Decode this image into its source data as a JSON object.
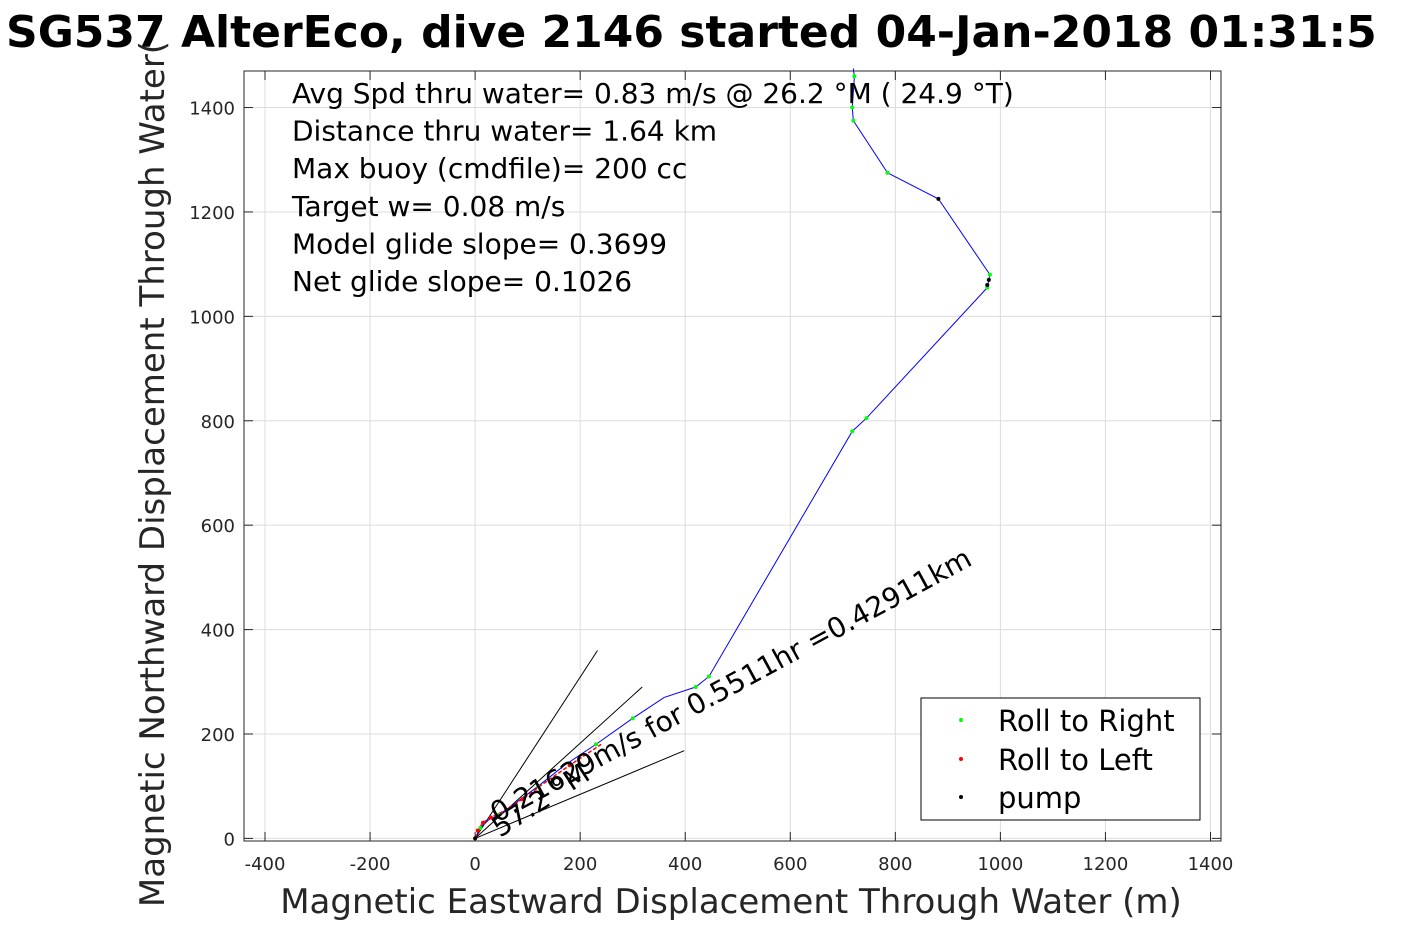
{
  "chart_data": {
    "type": "line",
    "title": "SG537 AlterEco, dive 2146 started 04-Jan-2018 01:31:5",
    "xlabel": "Magnetic Eastward Displacement Through Water (m)",
    "ylabel": "Magnetic Northward Displacement Through Water(",
    "xlim": [
      -440,
      1420
    ],
    "ylim": [
      -5,
      1470
    ],
    "xticks": [
      -400,
      -200,
      0,
      200,
      400,
      600,
      800,
      1000,
      1200,
      1400
    ],
    "yticks": [
      0,
      200,
      400,
      600,
      800,
      1000,
      1200,
      1400
    ],
    "grid": true,
    "annotations": [
      "Avg Spd thru water=  0.83 m/s @  26.2 °M ( 24.9 °T)",
      "Distance thru water=  1.64 km",
      "Max buoy (cmdfile)= 200 cc",
      "Target w= 0.08 m/s",
      "Model glide slope= 0.3699",
      "Net glide slope= 0.1026"
    ],
    "current_labels": {
      "speed": "0.21629m/s for 0.5511hr =0.42911km",
      "heading": "57.2 °M"
    },
    "track": {
      "name": "",
      "color": "#0000ff",
      "points": [
        [
          0,
          0
        ],
        [
          10,
          20
        ],
        [
          25,
          35
        ],
        [
          45,
          45
        ],
        [
          80,
          70
        ],
        [
          120,
          100
        ],
        [
          170,
          140
        ],
        [
          230,
          180
        ],
        [
          300,
          230
        ],
        [
          360,
          270
        ],
        [
          420,
          290
        ],
        [
          445,
          310
        ],
        [
          718,
          780
        ],
        [
          745,
          805
        ],
        [
          975,
          1055
        ],
        [
          980,
          1080
        ],
        [
          882,
          1225
        ],
        [
          785,
          1275
        ],
        [
          720,
          1375
        ],
        [
          718,
          1400
        ],
        [
          722,
          1460
        ],
        [
          720,
          1475
        ]
      ]
    },
    "roll_left_track": {
      "color": "#ff0000",
      "points": [
        [
          0,
          0
        ],
        [
          5,
          15
        ],
        [
          15,
          30
        ],
        [
          30,
          40
        ],
        [
          50,
          50
        ],
        [
          90,
          75
        ],
        [
          130,
          105
        ],
        [
          180,
          140
        ],
        [
          240,
          180
        ]
      ]
    },
    "current_vector": {
      "color": "#000000",
      "points": [
        [
          0,
          0
        ],
        [
          233,
          360
        ]
      ]
    },
    "uncertainty_lines": {
      "color": "#000000",
      "lines": [
        [
          [
            0,
            0
          ],
          [
            318,
            290
          ]
        ],
        [
          [
            0,
            0
          ],
          [
            398,
            168
          ]
        ]
      ]
    },
    "series": [
      {
        "name": "Roll to Right",
        "color": "#00ff00",
        "points": [
          [
            10,
            20
          ],
          [
            45,
            45
          ],
          [
            120,
            100
          ],
          [
            230,
            180
          ],
          [
            300,
            230
          ],
          [
            420,
            290
          ],
          [
            445,
            310
          ],
          [
            718,
            780
          ],
          [
            745,
            805
          ],
          [
            975,
            1055
          ],
          [
            980,
            1080
          ],
          [
            785,
            1275
          ],
          [
            720,
            1375
          ],
          [
            718,
            1400
          ],
          [
            722,
            1460
          ]
        ]
      },
      {
        "name": "Roll to Left",
        "color": "#ff0000",
        "points": [
          [
            5,
            15
          ],
          [
            15,
            30
          ],
          [
            30,
            40
          ],
          [
            90,
            75
          ],
          [
            180,
            140
          ]
        ]
      },
      {
        "name": "pump",
        "color": "#000000",
        "points": [
          [
            0,
            0
          ],
          [
            975,
            1060
          ],
          [
            978,
            1070
          ],
          [
            882,
            1225
          ]
        ]
      }
    ],
    "legend": {
      "placement": "bottom-right"
    }
  }
}
